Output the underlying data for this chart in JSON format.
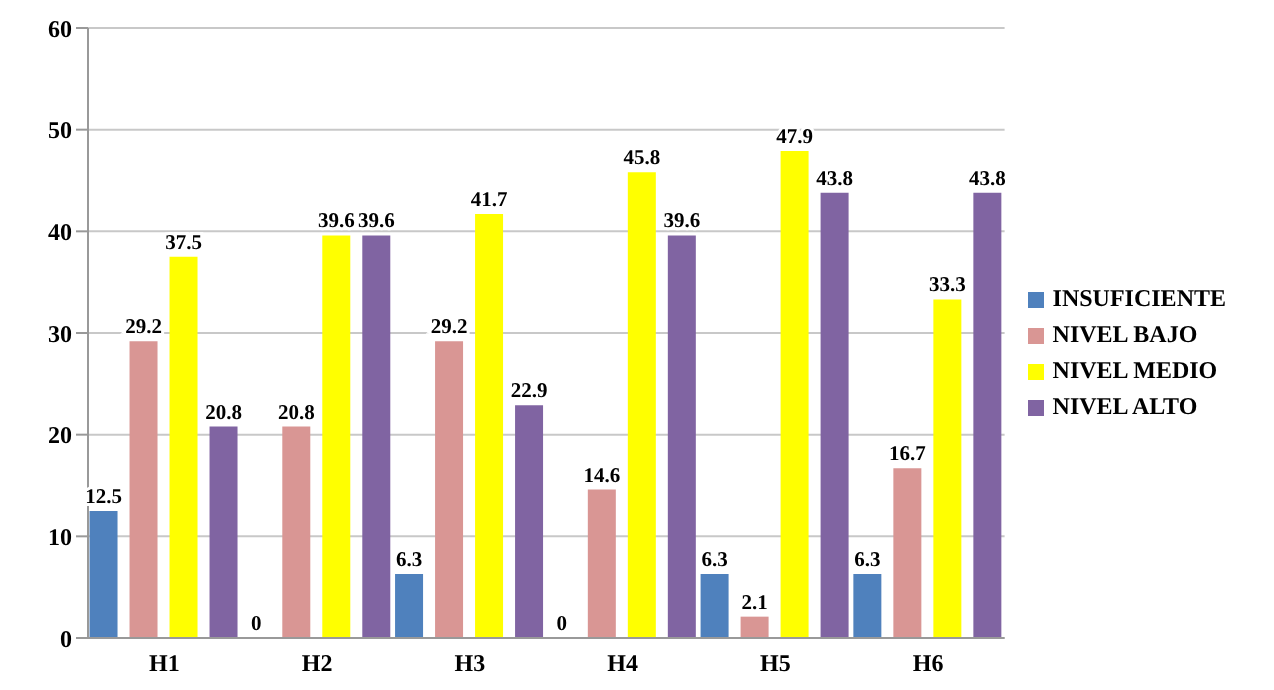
{
  "chart_data": {
    "type": "bar",
    "categories": [
      "H1",
      "H2",
      "H3",
      "H4",
      "H5",
      "H6"
    ],
    "series": [
      {
        "name": "INSUFICIENTE",
        "color": "#4f81bd",
        "values": [
          12.5,
          0,
          6.3,
          0,
          6.3,
          6.3
        ]
      },
      {
        "name": "NIVEL BAJO",
        "color": "#d99694",
        "values": [
          29.2,
          20.8,
          29.2,
          14.6,
          2.1,
          16.7
        ]
      },
      {
        "name": "NIVEL MEDIO",
        "color": "#ffff00",
        "values": [
          37.5,
          39.6,
          41.7,
          45.8,
          47.9,
          33.3
        ]
      },
      {
        "name": "NIVEL ALTO",
        "color": "#8064a2",
        "values": [
          20.8,
          39.6,
          22.9,
          39.6,
          43.8,
          43.8
        ]
      }
    ],
    "ylim": [
      0,
      60
    ],
    "yticks": [
      0,
      10,
      20,
      30,
      40,
      50,
      60
    ],
    "grid": "y",
    "legend": "right",
    "data_labels": true
  }
}
